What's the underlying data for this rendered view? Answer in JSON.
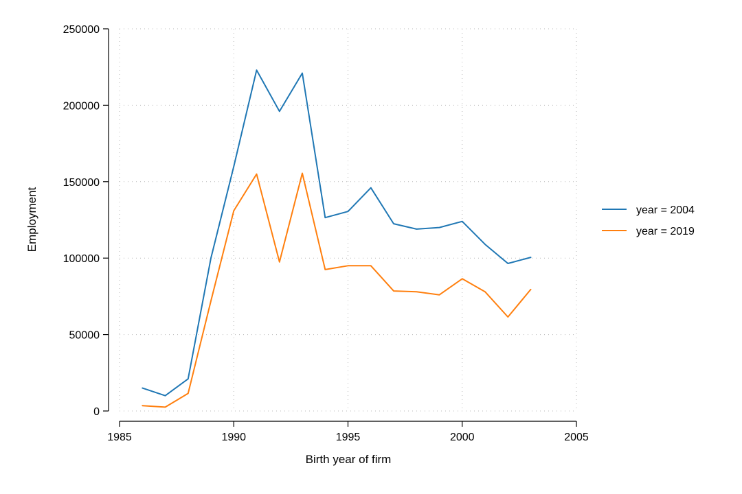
{
  "chart_data": {
    "type": "line",
    "xlabel": "Birth year of firm",
    "ylabel": "Employment",
    "xlim": [
      1985,
      2005
    ],
    "ylim": [
      0,
      250000
    ],
    "xticks": [
      1985,
      1990,
      1995,
      2000,
      2005
    ],
    "yticks": [
      0,
      50000,
      100000,
      150000,
      200000,
      250000
    ],
    "xtick_labels": [
      "1985",
      "1990",
      "1995",
      "2000",
      "2005"
    ],
    "ytick_labels": [
      "0",
      "50000",
      "100000",
      "150000",
      "200000",
      "250000"
    ],
    "grid": true,
    "legend_position": "right",
    "x": [
      1986,
      1987,
      1988,
      1989,
      1990,
      1991,
      1992,
      1993,
      1994,
      1995,
      1996,
      1997,
      1998,
      1999,
      2000,
      2001,
      2002,
      2003
    ],
    "series": [
      {
        "name": "year = 2004",
        "color": "#1f77b4",
        "values": [
          15000,
          10000,
          21000,
          100000,
          160000,
          223000,
          196000,
          221000,
          126500,
          130500,
          146000,
          122500,
          119000,
          120000,
          124000,
          109000,
          96500,
          100500
        ]
      },
      {
        "name": "year = 2019",
        "color": "#ff7f0e",
        "values": [
          3500,
          2500,
          11500,
          72000,
          131000,
          155000,
          97500,
          155500,
          92500,
          95000,
          95000,
          78500,
          78000,
          76000,
          86500,
          78000,
          61500,
          79500
        ]
      }
    ]
  }
}
